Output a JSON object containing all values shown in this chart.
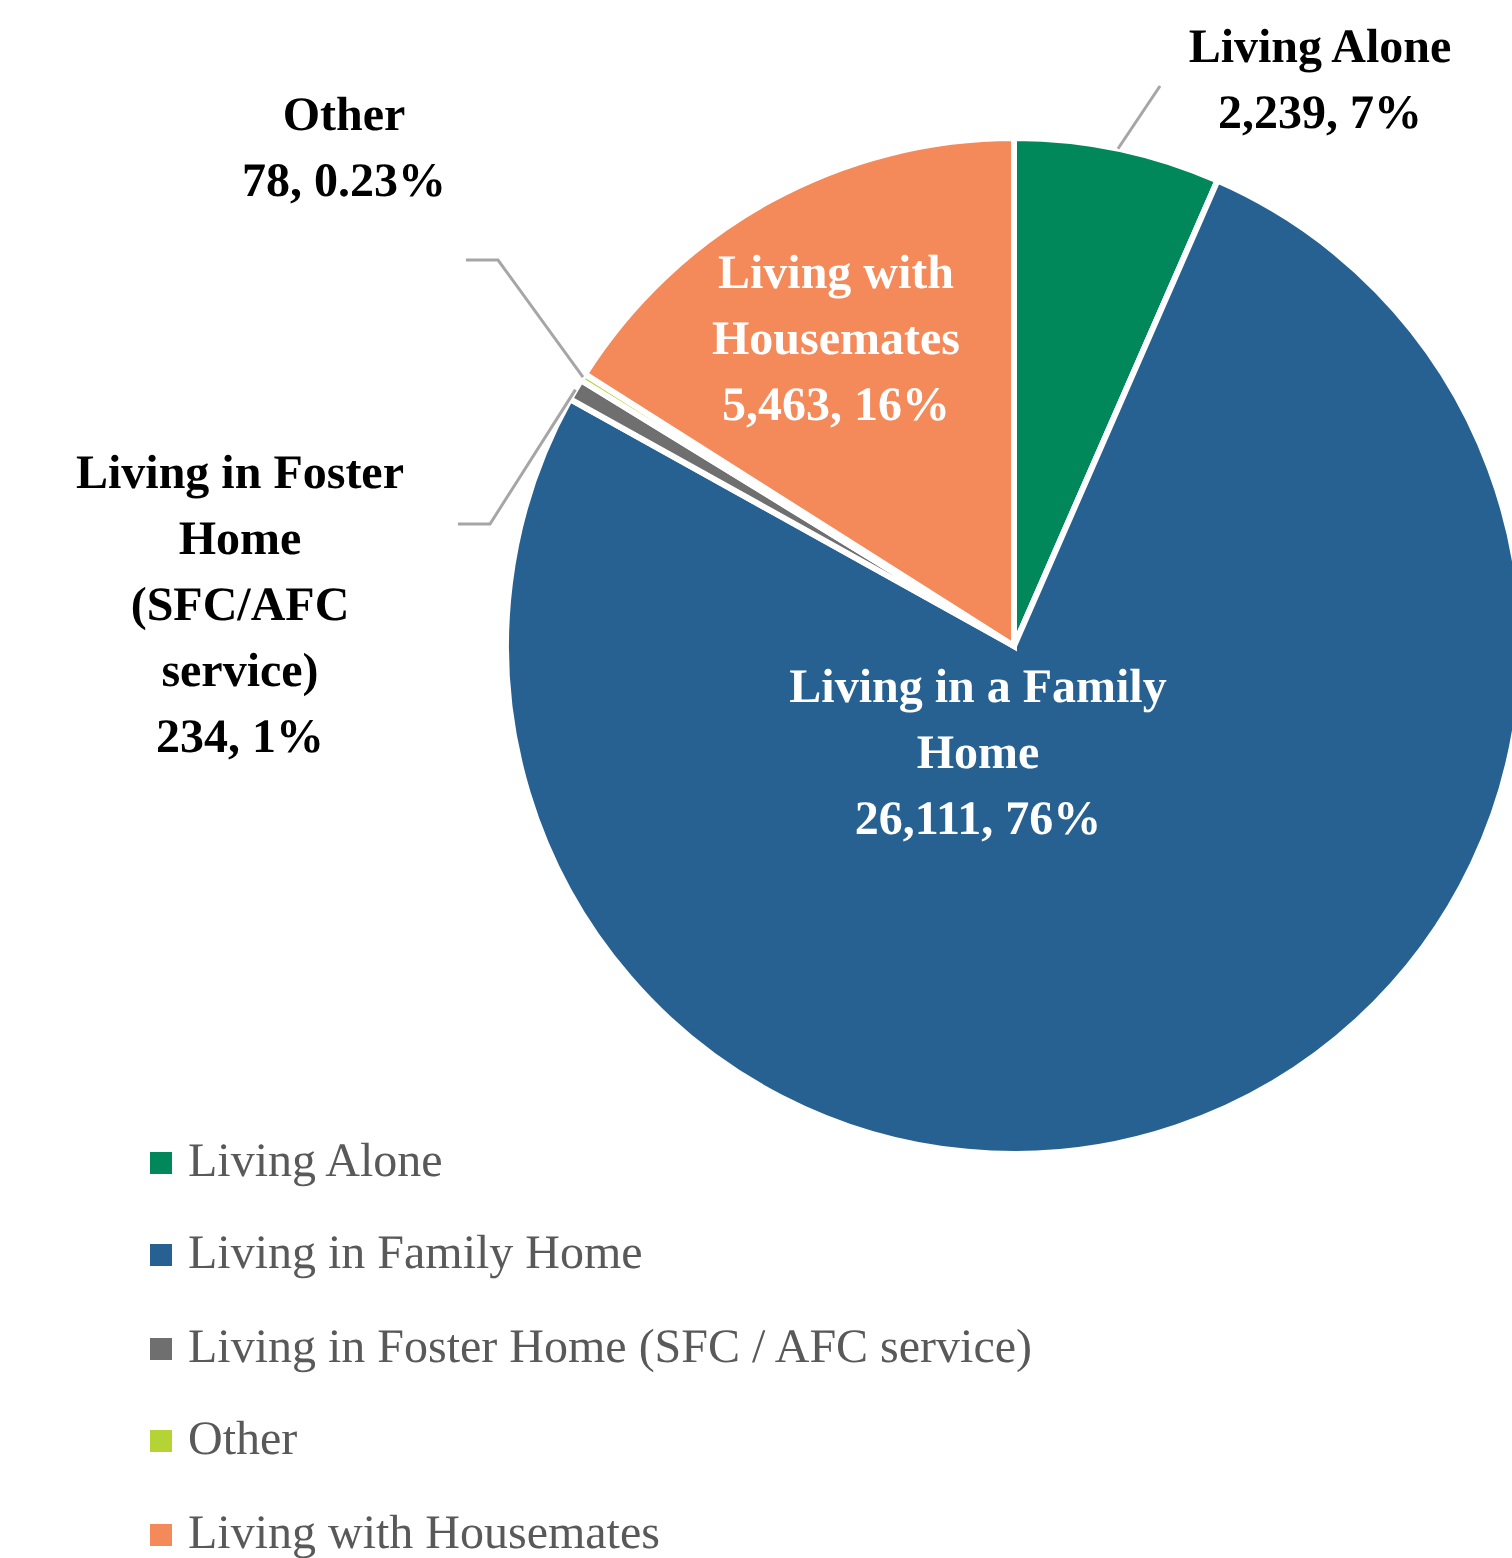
{
  "chart_data": {
    "type": "pie",
    "categories": [
      "Living Alone",
      "Living in Family Home",
      "Living in Foster Home (SFC / AFC service)",
      "Other",
      "Living with Housemates"
    ],
    "values": [
      2239,
      26111,
      234,
      78,
      5463
    ],
    "colors": [
      "#00875a",
      "#266192",
      "#6f6f6f",
      "#b5d334",
      "#f4895a"
    ],
    "value_labels": [
      "Living Alone\n2,239, 7%",
      "Living in a Family\nHome\n26,111, 76%",
      "Living in Foster\nHome\n(SFC/AFC\nservice)\n234, 1%",
      "Other\n78, 0.23%",
      "Living with\nHousemates\n5,463, 16%"
    ],
    "legend": "bottom"
  }
}
